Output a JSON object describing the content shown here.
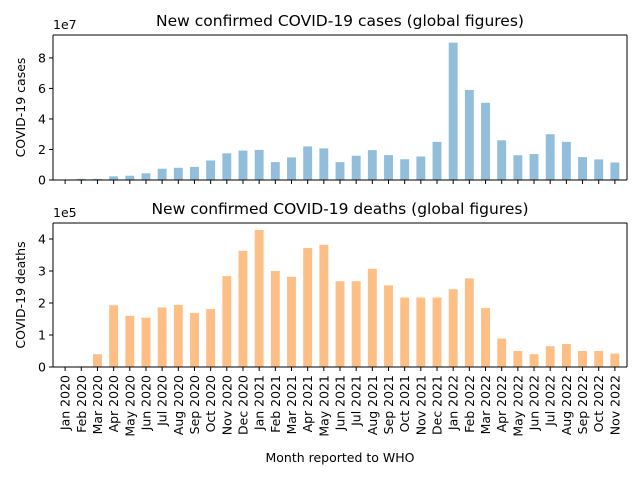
{
  "chart_data": [
    {
      "type": "bar",
      "title": "New confirmed COVID-19 cases (global figures)",
      "ylabel": "COVID-19 cases",
      "xlabel": "",
      "scale_label": "1e7",
      "scale": 10000000,
      "ylim": [
        0,
        9.5
      ],
      "yticks": [
        0,
        2,
        4,
        6,
        8
      ],
      "color": "#92bedb",
      "categories": [
        "Jan 2020",
        "Feb 2020",
        "Mar 2020",
        "Apr 2020",
        "May 2020",
        "Jun 2020",
        "Jul 2020",
        "Aug 2020",
        "Sep 2020",
        "Oct 2020",
        "Nov 2020",
        "Dec 2020",
        "Jan 2021",
        "Feb 2021",
        "Mar 2021",
        "Apr 2021",
        "May 2021",
        "Jun 2021",
        "Jul 2021",
        "Aug 2021",
        "Sep 2021",
        "Oct 2021",
        "Nov 2021",
        "Dec 2021",
        "Jan 2022",
        "Feb 2022",
        "Mar 2022",
        "Apr 2022",
        "May 2022",
        "Jun 2022",
        "Jul 2022",
        "Aug 2022",
        "Sep 2022",
        "Oct 2022",
        "Nov 2022"
      ],
      "values": [
        0.002,
        0.07,
        0.07,
        0.24,
        0.28,
        0.44,
        0.74,
        0.8,
        0.86,
        1.28,
        1.75,
        1.93,
        1.97,
        1.17,
        1.48,
        2.2,
        2.07,
        1.17,
        1.59,
        1.96,
        1.63,
        1.36,
        1.54,
        2.5,
        9.0,
        5.9,
        5.06,
        2.6,
        1.62,
        1.7,
        3.0,
        2.5,
        1.5,
        1.35,
        1.15
      ]
    },
    {
      "type": "bar",
      "title": "New confirmed COVID-19 deaths (global figures)",
      "ylabel": "COVID-19 deaths",
      "xlabel": "Month reported to WHO",
      "scale_label": "1e5",
      "scale": 100000,
      "ylim": [
        0,
        4.5
      ],
      "yticks": [
        0,
        1,
        2,
        3,
        4
      ],
      "color": "#fdbf86",
      "categories": [
        "Jan 2020",
        "Feb 2020",
        "Mar 2020",
        "Apr 2020",
        "May 2020",
        "Jun 2020",
        "Jul 2020",
        "Aug 2020",
        "Sep 2020",
        "Oct 2020",
        "Nov 2020",
        "Dec 2020",
        "Jan 2021",
        "Feb 2021",
        "Mar 2021",
        "Apr 2021",
        "May 2021",
        "Jun 2021",
        "Jul 2021",
        "Aug 2021",
        "Sep 2021",
        "Oct 2021",
        "Nov 2021",
        "Dec 2021",
        "Jan 2022",
        "Feb 2022",
        "Mar 2022",
        "Apr 2022",
        "May 2022",
        "Jun 2022",
        "Jul 2022",
        "Aug 2022",
        "Sep 2022",
        "Oct 2022",
        "Nov 2022"
      ],
      "values": [
        0.002,
        0.02,
        0.4,
        1.93,
        1.6,
        1.54,
        1.86,
        1.94,
        1.69,
        1.81,
        2.84,
        3.63,
        4.28,
        3.0,
        2.82,
        3.72,
        3.82,
        2.68,
        2.68,
        3.07,
        2.55,
        2.17,
        2.17,
        2.17,
        2.43,
        2.77,
        1.84,
        0.89,
        0.5,
        0.4,
        0.65,
        0.72,
        0.5,
        0.5,
        0.42
      ]
    }
  ]
}
